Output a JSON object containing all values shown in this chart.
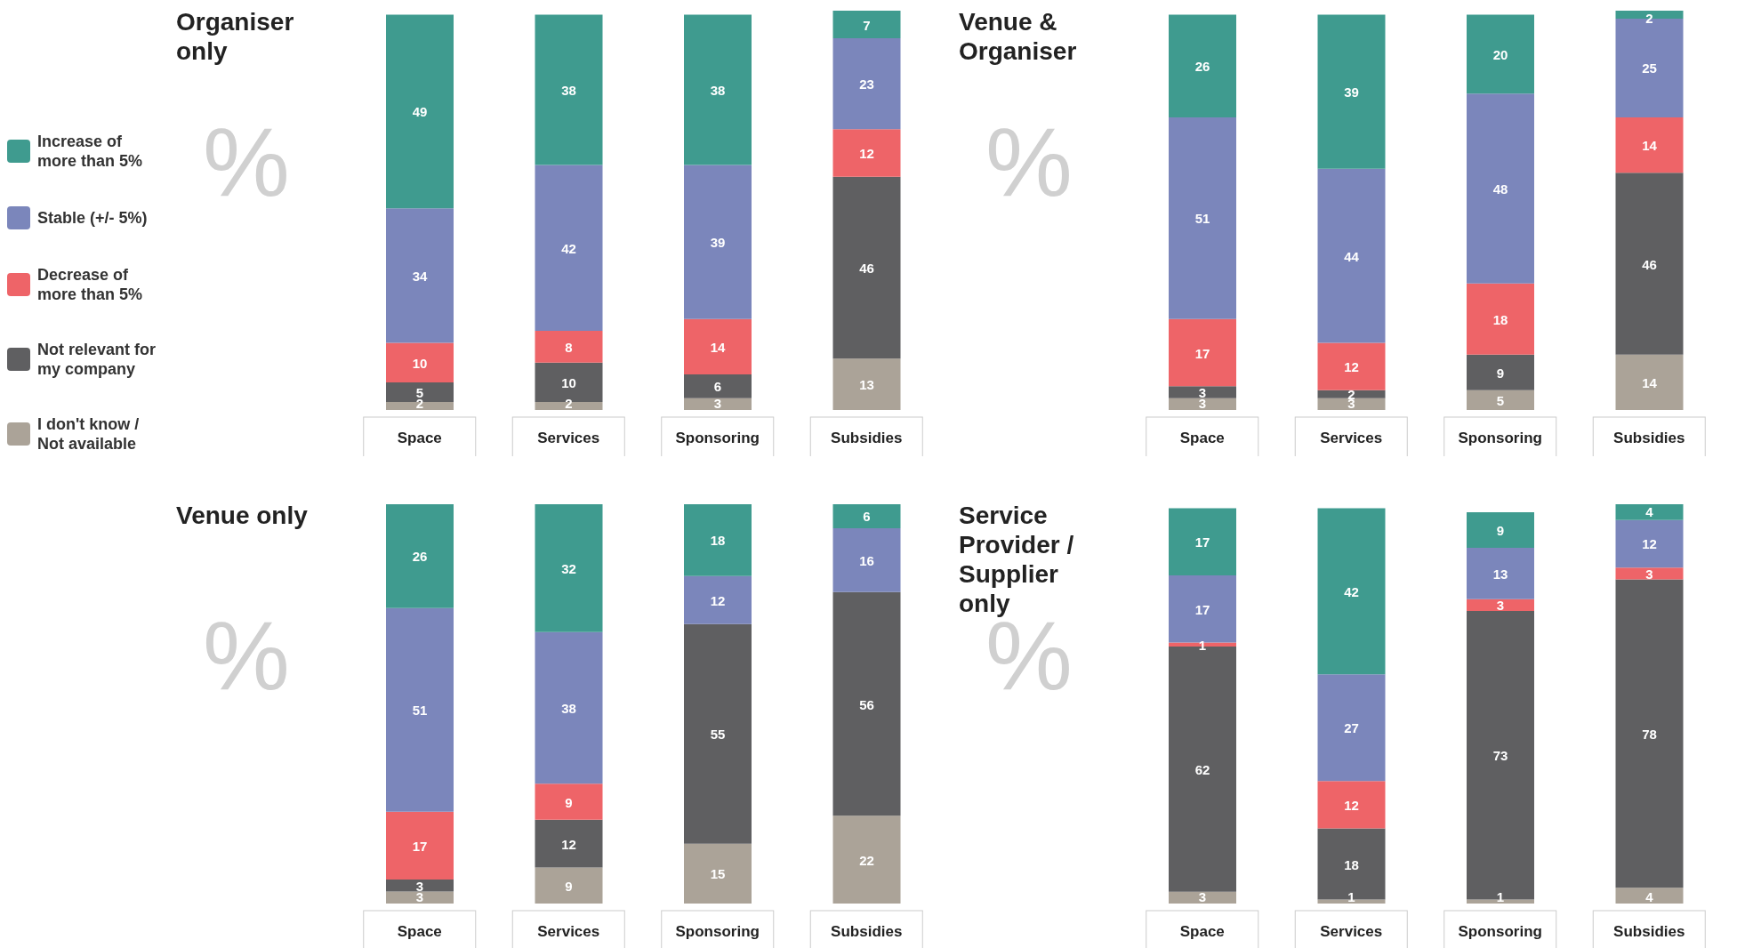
{
  "chart_data": [
    {
      "type": "bar",
      "title": "Organiser only",
      "ylabel": "%",
      "stacked": true,
      "data_labels": true,
      "legend": "left",
      "tick_labels": "x",
      "categories": [
        "Space",
        "Services",
        "Sponsoring",
        "Subsidies"
      ],
      "series": [
        {
          "name": "I don't know / Not available",
          "color": "#aba398",
          "values": [
            2,
            2,
            3,
            13
          ]
        },
        {
          "name": "Not relevant for my company",
          "color": "#5f5f61",
          "values": [
            5,
            10,
            6,
            46
          ]
        },
        {
          "name": "Decrease of more than 5%",
          "color": "#ee6468",
          "values": [
            10,
            8,
            14,
            12
          ]
        },
        {
          "name": "Stable (+/- 5%)",
          "color": "#7b86bb",
          "values": [
            34,
            42,
            39,
            23
          ]
        },
        {
          "name": "Increase of more than 5%",
          "color": "#3f9b8f",
          "values": [
            49,
            38,
            38,
            7
          ]
        }
      ]
    },
    {
      "type": "bar",
      "title": "Venue & Organiser",
      "ylabel": "%",
      "stacked": true,
      "data_labels": true,
      "tick_labels": "x",
      "categories": [
        "Space",
        "Services",
        "Sponsoring",
        "Subsidies"
      ],
      "series": [
        {
          "color": "#aba398",
          "values": [
            3,
            3,
            5,
            14
          ]
        },
        {
          "color": "#5f5f61",
          "values": [
            3,
            2,
            9,
            46
          ]
        },
        {
          "color": "#ee6468",
          "values": [
            17,
            12,
            18,
            14
          ]
        },
        {
          "color": "#7b86bb",
          "values": [
            51,
            44,
            48,
            25
          ]
        },
        {
          "color": "#3f9b8f",
          "values": [
            26,
            39,
            20,
            2
          ]
        }
      ]
    },
    {
      "type": "bar",
      "title": "Venue only",
      "ylabel": "%",
      "stacked": true,
      "data_labels": true,
      "tick_labels": "x",
      "categories": [
        "Space",
        "Services",
        "Sponsoring",
        "Subsidies"
      ],
      "series": [
        {
          "color": "#aba398",
          "values": [
            3,
            9,
            15,
            22
          ]
        },
        {
          "color": "#5f5f61",
          "values": [
            3,
            12,
            55,
            56
          ]
        },
        {
          "color": "#ee6468",
          "values": [
            17,
            9,
            null,
            null
          ]
        },
        {
          "color": "#7b86bb",
          "values": [
            51,
            38,
            12,
            16
          ]
        },
        {
          "color": "#3f9b8f",
          "values": [
            26,
            32,
            18,
            6
          ]
        }
      ]
    },
    {
      "type": "bar",
      "title": "Service Provider / Supplier only",
      "ylabel": "%",
      "stacked": true,
      "data_labels": true,
      "tick_labels": "x",
      "categories": [
        "Space",
        "Services",
        "Sponsoring",
        "Subsidies"
      ],
      "series": [
        {
          "color": "#aba398",
          "values": [
            3,
            1,
            1,
            4
          ]
        },
        {
          "color": "#5f5f61",
          "values": [
            62,
            18,
            73,
            78
          ]
        },
        {
          "color": "#ee6468",
          "values": [
            1,
            12,
            3,
            3
          ]
        },
        {
          "color": "#7b86bb",
          "values": [
            17,
            27,
            13,
            12
          ]
        },
        {
          "color": "#3f9b8f",
          "values": [
            17,
            42,
            9,
            4
          ]
        }
      ]
    }
  ]
}
